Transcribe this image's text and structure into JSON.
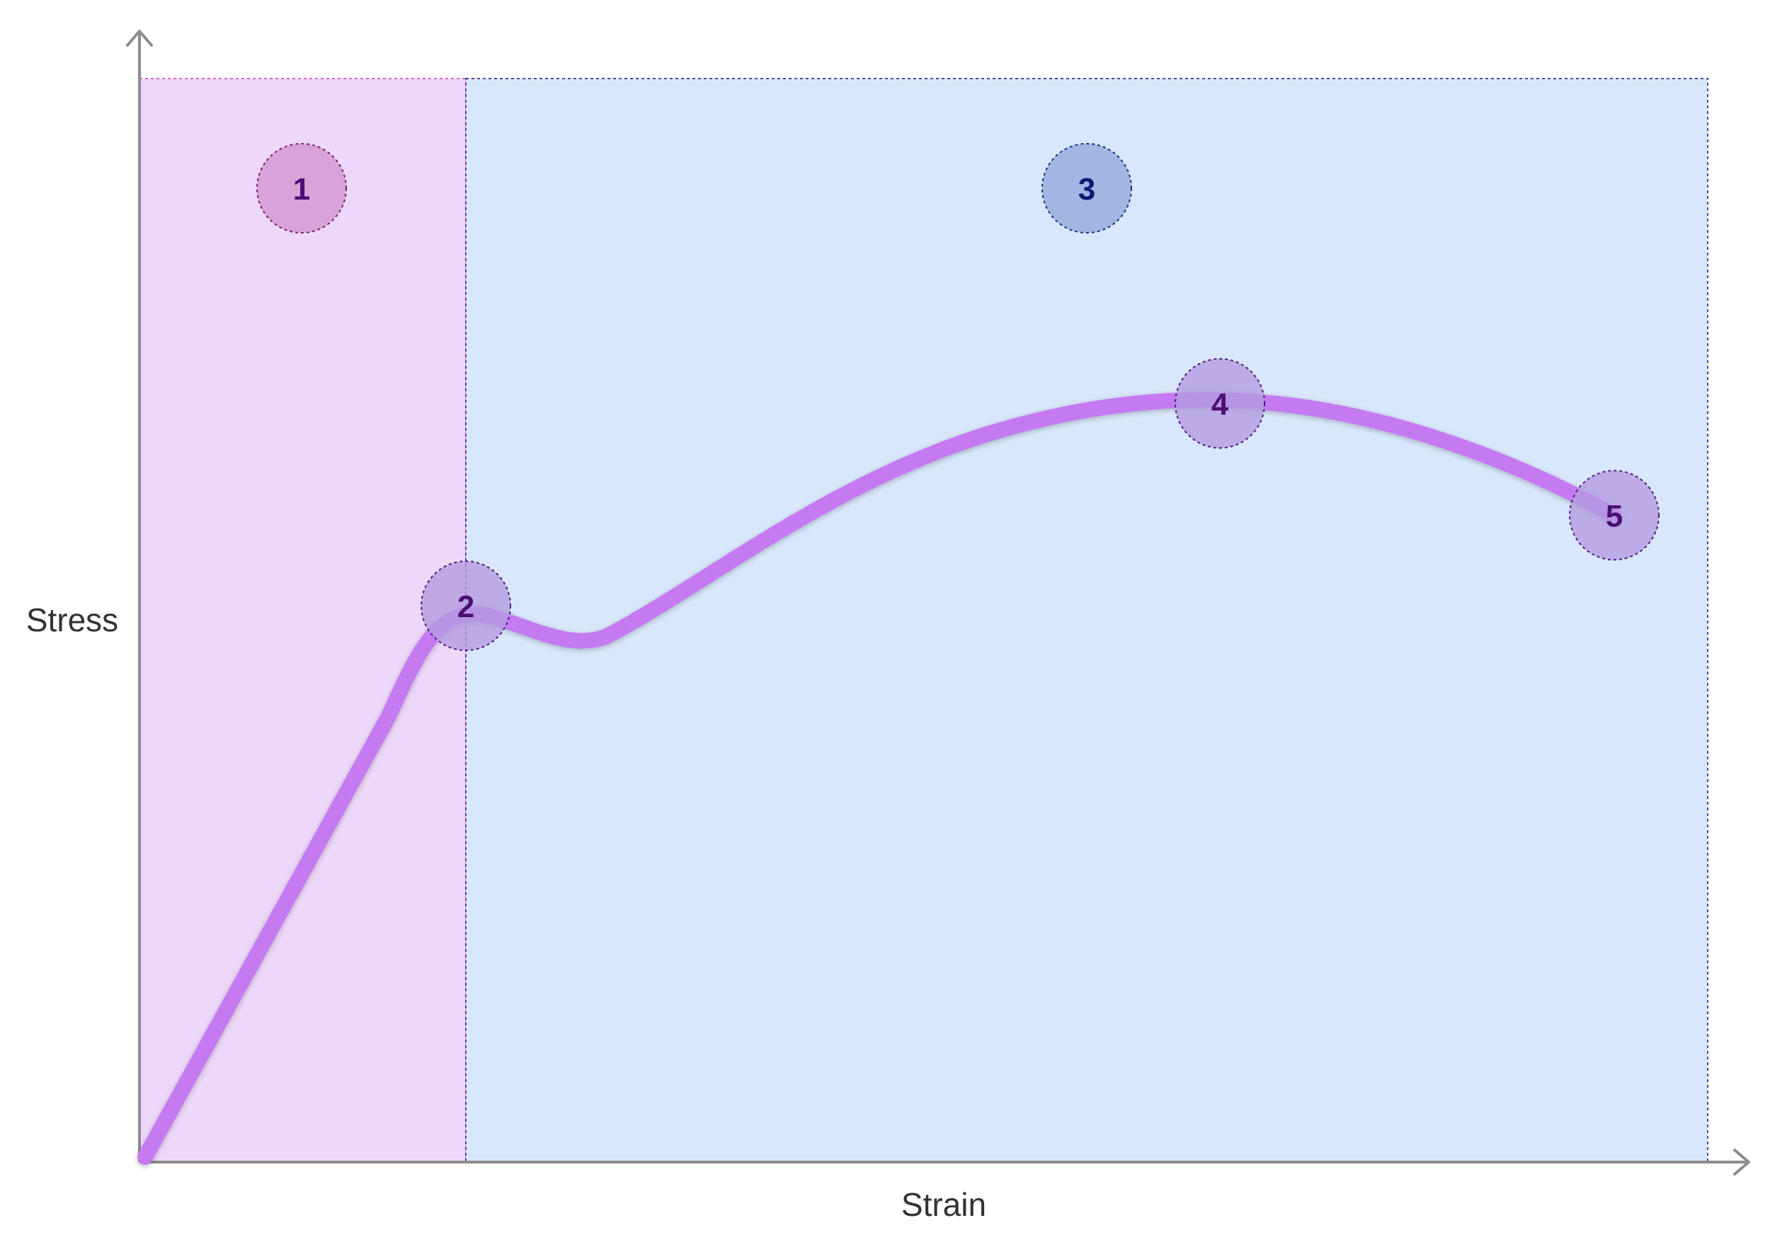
{
  "axes": {
    "x_label": "Strain",
    "y_label": "Stress"
  },
  "colors": {
    "axis": "#8c8c8c",
    "elastic_region_fill": "#eed8fa",
    "elastic_region_stroke": "#e060d8",
    "plastic_region_fill": "#d9e7fc",
    "plastic_region_stroke": "#4a4aa0",
    "curve": "#c57af2",
    "marker_purple_fill": "#b49ce0",
    "marker_purple_stroke": "#4b1f7a",
    "marker_purple_text": "#4b0f73",
    "marker_pink_fill": "#d7a3d8",
    "marker_pink_stroke": "#7a1f70",
    "marker_blue_fill": "#a2b6e4",
    "marker_blue_stroke": "#1f2f7a",
    "marker_blue_text": "#0d1a73"
  },
  "regions": [
    {
      "name": "elastic-region"
    },
    {
      "name": "plastic-region"
    }
  ],
  "markers": [
    {
      "label": "1",
      "style": "pink"
    },
    {
      "label": "2",
      "style": "purple"
    },
    {
      "label": "3",
      "style": "blue"
    },
    {
      "label": "4",
      "style": "purple"
    },
    {
      "label": "5",
      "style": "purple"
    }
  ]
}
